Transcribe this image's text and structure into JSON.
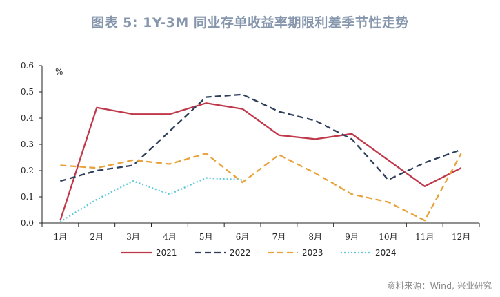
{
  "title": "图表 5:  1Y-3M 同业存单收益率期限利差季节性走势",
  "source": "资料来源：Wind, 兴业研究",
  "chart_data": {
    "type": "line",
    "title": "图表 5:  1Y-3M 同业存单收益率期限利差季节性走势",
    "unit_label": "%",
    "categories": [
      "1月",
      "2月",
      "3月",
      "4月",
      "5月",
      "6月",
      "7月",
      "8月",
      "9月",
      "10月",
      "11月",
      "12月"
    ],
    "ylim": [
      0,
      0.6
    ],
    "yticks": [
      "0.0",
      "0.1",
      "0.2",
      "0.3",
      "0.4",
      "0.5",
      "0.6"
    ],
    "grid": false,
    "legend": "bottom",
    "series": [
      {
        "name": "2021",
        "color": "#c0394b",
        "style": "solid",
        "values": [
          0.01,
          0.44,
          0.415,
          0.415,
          0.457,
          0.435,
          0.335,
          0.32,
          0.34,
          0.24,
          0.14,
          0.21
        ]
      },
      {
        "name": "2022",
        "color": "#2e3f5c",
        "style": "dashed",
        "values": [
          0.16,
          0.2,
          0.22,
          0.35,
          0.48,
          0.49,
          0.425,
          0.39,
          0.32,
          0.165,
          0.23,
          0.28
        ]
      },
      {
        "name": "2023",
        "color": "#e8a23a",
        "style": "dashed",
        "values": [
          0.22,
          0.21,
          0.24,
          0.225,
          0.265,
          0.155,
          0.26,
          0.19,
          0.11,
          0.08,
          0.01,
          0.265
        ]
      },
      {
        "name": "2024",
        "color": "#5cc8d8",
        "style": "dotted",
        "values": [
          0.005,
          0.09,
          0.16,
          0.11,
          0.172,
          0.165,
          null,
          null,
          null,
          null,
          null,
          null
        ]
      }
    ]
  }
}
